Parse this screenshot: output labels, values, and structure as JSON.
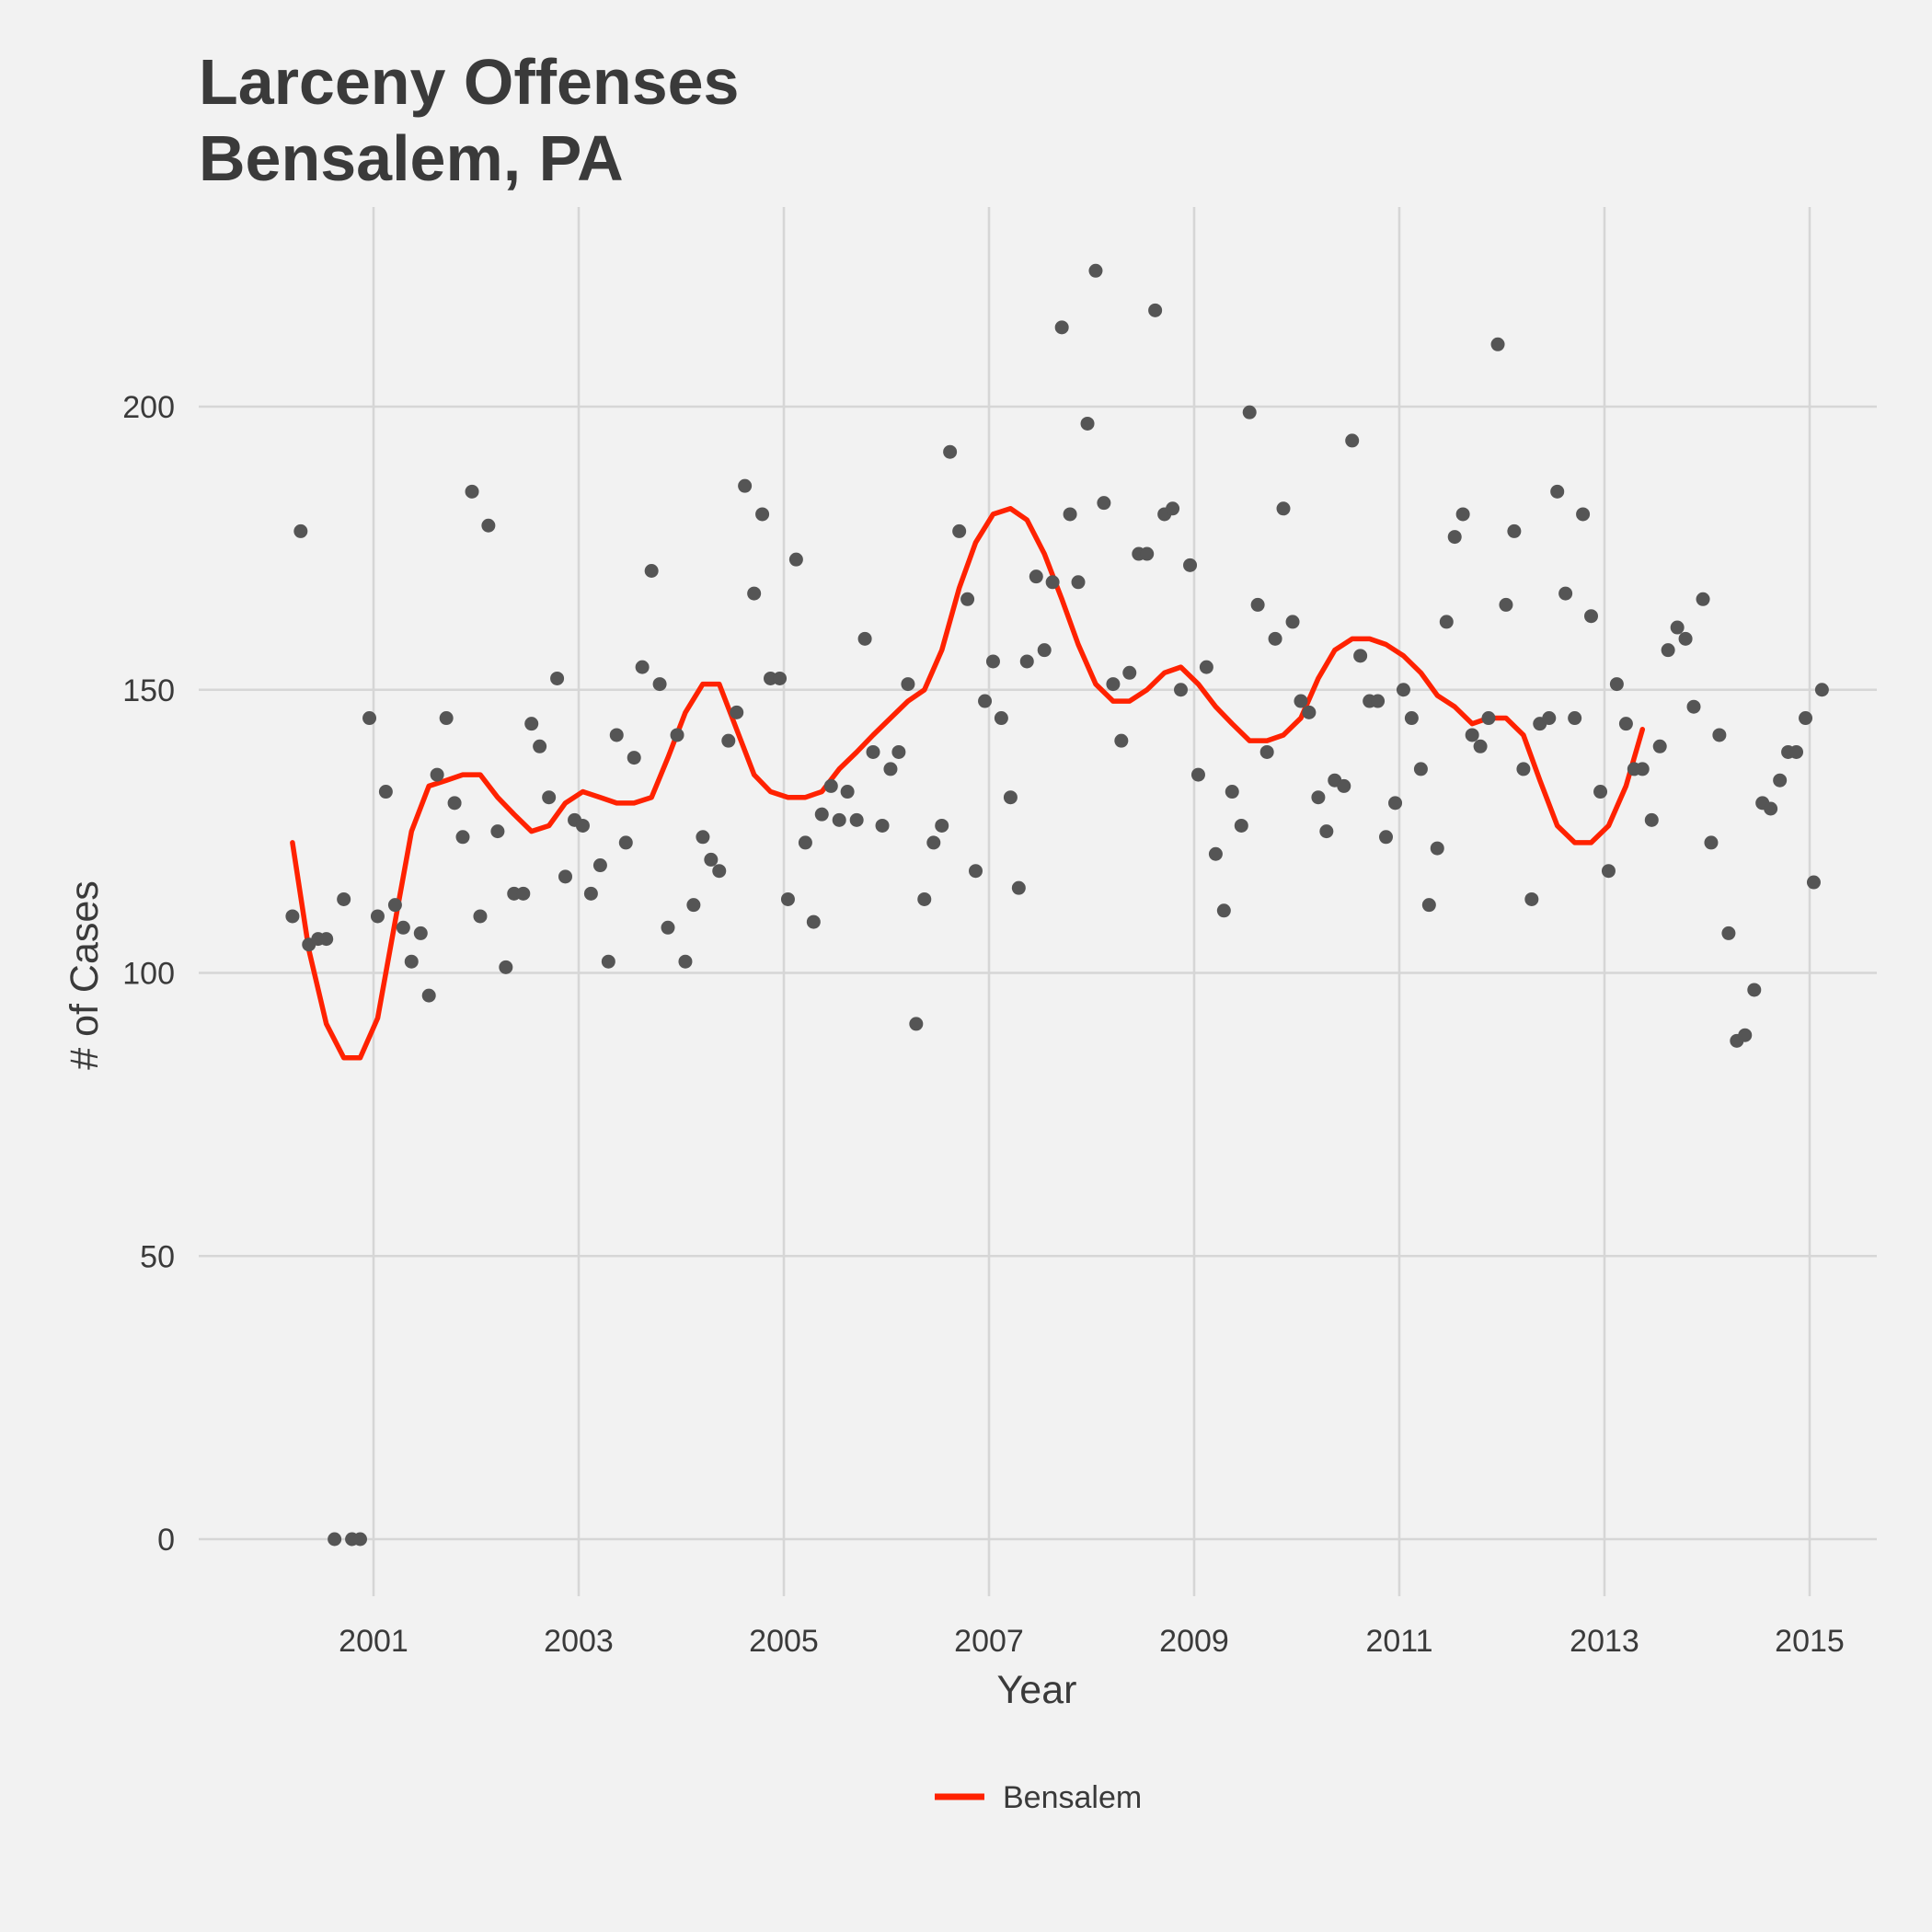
{
  "chart_data": {
    "type": "scatter",
    "title": "Larceny Offenses\nBensalem, PA",
    "title_lines": [
      "Larceny Offenses",
      "Bensalem, PA"
    ],
    "xlabel": "Year",
    "ylabel": "# of Cases",
    "xlim": [
      2000.0,
      2015.7
    ],
    "ylim": [
      -10,
      230
    ],
    "x_ticks": [
      2001,
      2003,
      2005,
      2007,
      2009,
      2011,
      2013,
      2015
    ],
    "x_tick_labels": [
      "2001",
      "2003",
      "2005",
      "2007",
      "2009",
      "2011",
      "2013",
      "2015"
    ],
    "y_ticks": [
      0,
      50,
      100,
      150,
      200
    ],
    "y_tick_labels": [
      "0",
      "50",
      "100",
      "150",
      "200"
    ],
    "grid": true,
    "legend_position": "bottom",
    "legend": [
      {
        "name": "Bensalem",
        "color": "#ff2200"
      }
    ],
    "series": [
      {
        "name": "",
        "kind": "points",
        "color": "#555555",
        "points": [
          [
            2000.21,
            110
          ],
          [
            2000.29,
            178
          ],
          [
            2000.37,
            105
          ],
          [
            2000.46,
            106
          ],
          [
            2000.54,
            106
          ],
          [
            2000.62,
            0
          ],
          [
            2000.71,
            113
          ],
          [
            2000.79,
            0
          ],
          [
            2000.87,
            0
          ],
          [
            2000.96,
            145
          ],
          [
            2001.04,
            110
          ],
          [
            2001.12,
            132
          ],
          [
            2001.21,
            112
          ],
          [
            2001.29,
            108
          ],
          [
            2001.37,
            102
          ],
          [
            2001.46,
            107
          ],
          [
            2001.54,
            96
          ],
          [
            2001.62,
            135
          ],
          [
            2001.71,
            145
          ],
          [
            2001.79,
            130
          ],
          [
            2001.87,
            124
          ],
          [
            2001.96,
            185
          ],
          [
            2002.04,
            110
          ],
          [
            2002.12,
            179
          ],
          [
            2002.21,
            125
          ],
          [
            2002.29,
            101
          ],
          [
            2002.37,
            114
          ],
          [
            2002.46,
            114
          ],
          [
            2002.54,
            144
          ],
          [
            2002.62,
            140
          ],
          [
            2002.71,
            131
          ],
          [
            2002.79,
            152
          ],
          [
            2002.87,
            117
          ],
          [
            2002.96,
            127
          ],
          [
            2003.04,
            126
          ],
          [
            2003.12,
            114
          ],
          [
            2003.21,
            119
          ],
          [
            2003.29,
            102
          ],
          [
            2003.37,
            142
          ],
          [
            2003.46,
            123
          ],
          [
            2003.54,
            138
          ],
          [
            2003.62,
            154
          ],
          [
            2003.71,
            171
          ],
          [
            2003.79,
            151
          ],
          [
            2003.87,
            108
          ],
          [
            2003.96,
            142
          ],
          [
            2004.04,
            102
          ],
          [
            2004.12,
            112
          ],
          [
            2004.21,
            124
          ],
          [
            2004.29,
            120
          ],
          [
            2004.37,
            118
          ],
          [
            2004.46,
            141
          ],
          [
            2004.54,
            146
          ],
          [
            2004.62,
            186
          ],
          [
            2004.71,
            167
          ],
          [
            2004.79,
            181
          ],
          [
            2004.87,
            152
          ],
          [
            2004.96,
            152
          ],
          [
            2005.04,
            113
          ],
          [
            2005.12,
            173
          ],
          [
            2005.21,
            123
          ],
          [
            2005.29,
            109
          ],
          [
            2005.37,
            128
          ],
          [
            2005.46,
            133
          ],
          [
            2005.54,
            127
          ],
          [
            2005.62,
            132
          ],
          [
            2005.71,
            127
          ],
          [
            2005.79,
            159
          ],
          [
            2005.87,
            139
          ],
          [
            2005.96,
            126
          ],
          [
            2006.04,
            136
          ],
          [
            2006.12,
            139
          ],
          [
            2006.21,
            151
          ],
          [
            2006.29,
            91
          ],
          [
            2006.37,
            113
          ],
          [
            2006.46,
            123
          ],
          [
            2006.54,
            126
          ],
          [
            2006.62,
            192
          ],
          [
            2006.71,
            178
          ],
          [
            2006.79,
            166
          ],
          [
            2006.87,
            118
          ],
          [
            2006.96,
            148
          ],
          [
            2007.04,
            155
          ],
          [
            2007.12,
            145
          ],
          [
            2007.21,
            131
          ],
          [
            2007.29,
            115
          ],
          [
            2007.37,
            155
          ],
          [
            2007.46,
            170
          ],
          [
            2007.54,
            157
          ],
          [
            2007.62,
            169
          ],
          [
            2007.71,
            214
          ],
          [
            2007.79,
            181
          ],
          [
            2007.87,
            169
          ],
          [
            2007.96,
            197
          ],
          [
            2008.04,
            224
          ],
          [
            2008.12,
            183
          ],
          [
            2008.21,
            151
          ],
          [
            2008.29,
            141
          ],
          [
            2008.37,
            153
          ],
          [
            2008.46,
            174
          ],
          [
            2008.54,
            174
          ],
          [
            2008.62,
            217
          ],
          [
            2008.71,
            181
          ],
          [
            2008.79,
            182
          ],
          [
            2008.87,
            150
          ],
          [
            2008.96,
            172
          ],
          [
            2009.04,
            135
          ],
          [
            2009.12,
            154
          ],
          [
            2009.21,
            121
          ],
          [
            2009.29,
            111
          ],
          [
            2009.37,
            132
          ],
          [
            2009.46,
            126
          ],
          [
            2009.54,
            199
          ],
          [
            2009.62,
            165
          ],
          [
            2009.71,
            139
          ],
          [
            2009.79,
            159
          ],
          [
            2009.87,
            182
          ],
          [
            2009.96,
            162
          ],
          [
            2010.04,
            148
          ],
          [
            2010.12,
            146
          ],
          [
            2010.21,
            131
          ],
          [
            2010.29,
            125
          ],
          [
            2010.37,
            134
          ],
          [
            2010.46,
            133
          ],
          [
            2010.54,
            194
          ],
          [
            2010.62,
            156
          ],
          [
            2010.71,
            148
          ],
          [
            2010.79,
            148
          ],
          [
            2010.87,
            124
          ],
          [
            2010.96,
            130
          ],
          [
            2011.04,
            150
          ],
          [
            2011.12,
            145
          ],
          [
            2011.21,
            136
          ],
          [
            2011.29,
            112
          ],
          [
            2011.37,
            122
          ],
          [
            2011.46,
            162
          ],
          [
            2011.54,
            177
          ],
          [
            2011.62,
            181
          ],
          [
            2011.71,
            142
          ],
          [
            2011.79,
            140
          ],
          [
            2011.87,
            145
          ],
          [
            2011.96,
            211
          ],
          [
            2012.04,
            165
          ],
          [
            2012.12,
            178
          ],
          [
            2012.21,
            136
          ],
          [
            2012.29,
            113
          ],
          [
            2012.37,
            144
          ],
          [
            2012.46,
            145
          ],
          [
            2012.54,
            185
          ],
          [
            2012.62,
            167
          ],
          [
            2012.71,
            145
          ],
          [
            2012.79,
            181
          ],
          [
            2012.87,
            163
          ],
          [
            2012.96,
            132
          ],
          [
            2013.04,
            118
          ],
          [
            2013.12,
            151
          ],
          [
            2013.21,
            144
          ],
          [
            2013.29,
            136
          ],
          [
            2013.37,
            136
          ],
          [
            2013.46,
            127
          ],
          [
            2013.54,
            140
          ],
          [
            2013.62,
            157
          ],
          [
            2013.71,
            161
          ],
          [
            2013.79,
            159
          ],
          [
            2013.87,
            147
          ],
          [
            2013.96,
            166
          ],
          [
            2014.04,
            123
          ],
          [
            2014.12,
            142
          ],
          [
            2014.21,
            107
          ],
          [
            2014.29,
            88
          ],
          [
            2014.37,
            89
          ],
          [
            2014.46,
            97
          ],
          [
            2014.54,
            130
          ],
          [
            2014.62,
            129
          ],
          [
            2014.71,
            134
          ],
          [
            2014.79,
            139
          ],
          [
            2014.87,
            139
          ],
          [
            2014.96,
            145
          ],
          [
            2015.04,
            116
          ],
          [
            2015.12,
            150
          ]
        ]
      },
      {
        "name": "Bensalem",
        "kind": "line",
        "color": "#ff2200",
        "points": [
          [
            2000.21,
            123
          ],
          [
            2000.37,
            104
          ],
          [
            2000.54,
            91
          ],
          [
            2000.71,
            85
          ],
          [
            2000.87,
            85
          ],
          [
            2001.04,
            92
          ],
          [
            2001.21,
            109
          ],
          [
            2001.37,
            125
          ],
          [
            2001.54,
            133
          ],
          [
            2001.71,
            134
          ],
          [
            2001.87,
            135
          ],
          [
            2002.04,
            135
          ],
          [
            2002.21,
            131
          ],
          [
            2002.37,
            128
          ],
          [
            2002.54,
            125
          ],
          [
            2002.71,
            126
          ],
          [
            2002.87,
            130
          ],
          [
            2003.04,
            132
          ],
          [
            2003.21,
            131
          ],
          [
            2003.37,
            130
          ],
          [
            2003.54,
            130
          ],
          [
            2003.71,
            131
          ],
          [
            2003.87,
            138
          ],
          [
            2004.04,
            146
          ],
          [
            2004.21,
            151
          ],
          [
            2004.37,
            151
          ],
          [
            2004.54,
            143
          ],
          [
            2004.71,
            135
          ],
          [
            2004.87,
            132
          ],
          [
            2005.04,
            131
          ],
          [
            2005.21,
            131
          ],
          [
            2005.37,
            132
          ],
          [
            2005.54,
            136
          ],
          [
            2005.71,
            139
          ],
          [
            2005.87,
            142
          ],
          [
            2006.04,
            145
          ],
          [
            2006.21,
            148
          ],
          [
            2006.37,
            150
          ],
          [
            2006.54,
            157
          ],
          [
            2006.71,
            168
          ],
          [
            2006.87,
            176
          ],
          [
            2007.04,
            181
          ],
          [
            2007.21,
            182
          ],
          [
            2007.37,
            180
          ],
          [
            2007.54,
            174
          ],
          [
            2007.71,
            166
          ],
          [
            2007.87,
            158
          ],
          [
            2008.04,
            151
          ],
          [
            2008.21,
            148
          ],
          [
            2008.37,
            148
          ],
          [
            2008.54,
            150
          ],
          [
            2008.71,
            153
          ],
          [
            2008.87,
            154
          ],
          [
            2009.04,
            151
          ],
          [
            2009.21,
            147
          ],
          [
            2009.37,
            144
          ],
          [
            2009.54,
            141
          ],
          [
            2009.71,
            141
          ],
          [
            2009.87,
            142
          ],
          [
            2010.04,
            145
          ],
          [
            2010.21,
            152
          ],
          [
            2010.37,
            157
          ],
          [
            2010.54,
            159
          ],
          [
            2010.71,
            159
          ],
          [
            2010.87,
            158
          ],
          [
            2011.04,
            156
          ],
          [
            2011.21,
            153
          ],
          [
            2011.37,
            149
          ],
          [
            2011.54,
            147
          ],
          [
            2011.71,
            144
          ],
          [
            2011.87,
            145
          ],
          [
            2012.04,
            145
          ],
          [
            2012.21,
            142
          ],
          [
            2012.37,
            134
          ],
          [
            2012.54,
            126
          ],
          [
            2012.71,
            123
          ],
          [
            2012.87,
            123
          ],
          [
            2013.04,
            126
          ],
          [
            2013.21,
            133
          ],
          [
            2013.37,
            143
          ]
        ]
      }
    ]
  }
}
